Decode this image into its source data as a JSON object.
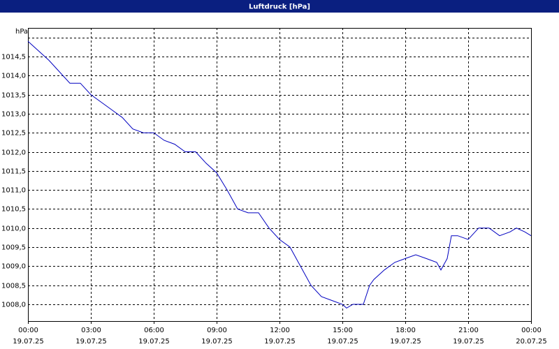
{
  "chart_data": {
    "type": "line",
    "title": "Luftdruck [hPa]",
    "y_unit_label": "hPa",
    "x": [
      0,
      1,
      2,
      2.5,
      3,
      3.5,
      4,
      4.5,
      5,
      5.5,
      6,
      6.5,
      7,
      7.5,
      8,
      8.5,
      9,
      9.5,
      10,
      10.5,
      11,
      11.5,
      12,
      12.5,
      13,
      13.5,
      14,
      14.5,
      15,
      15.2,
      15.5,
      16,
      16.3,
      16.5,
      17,
      17.5,
      18,
      18.5,
      19,
      19.5,
      19.7,
      20,
      20.2,
      20.5,
      21,
      21.5,
      22,
      22.5,
      23,
      23.3,
      23.7,
      24
    ],
    "series": [
      {
        "name": "Luftdruck",
        "color": "#0000c0",
        "values": [
          1014.9,
          1014.4,
          1013.8,
          1013.8,
          1013.5,
          1013.3,
          1013.1,
          1012.9,
          1012.6,
          1012.5,
          1012.5,
          1012.3,
          1012.2,
          1012.0,
          1012.0,
          1011.7,
          1011.45,
          1011.0,
          1010.5,
          1010.4,
          1010.4,
          1010.0,
          1009.7,
          1009.5,
          1009.0,
          1008.5,
          1008.2,
          1008.1,
          1008.0,
          1007.9,
          1008.0,
          1008.0,
          1008.5,
          1008.65,
          1008.9,
          1009.1,
          1009.2,
          1009.3,
          1009.2,
          1009.1,
          1008.9,
          1009.2,
          1009.8,
          1009.8,
          1009.7,
          1010.0,
          1010.0,
          1009.8,
          1009.9,
          1010.0,
          1009.9,
          1009.8
        ]
      }
    ],
    "xlim": [
      0,
      24
    ],
    "xticks": [
      {
        "value": 0,
        "label": "00:00"
      },
      {
        "value": 3,
        "label": "03:00"
      },
      {
        "value": 6,
        "label": "06:00"
      },
      {
        "value": 9,
        "label": "09:00"
      },
      {
        "value": 12,
        "label": "12:00"
      },
      {
        "value": 15,
        "label": "15:00"
      },
      {
        "value": 18,
        "label": "18:00"
      },
      {
        "value": 21,
        "label": "21:00"
      },
      {
        "value": 24,
        "label": "00:00"
      }
    ],
    "xtick_dates": [
      "19.07.25",
      "19.07.25",
      "19.07.25",
      "19.07.25",
      "19.07.25",
      "19.07.25",
      "19.07.25",
      "19.07.25",
      "20.07.25"
    ],
    "ylim": [
      1007.56,
      1015.25
    ],
    "yticks": [
      {
        "value": 1008,
        "label": "1008,0"
      },
      {
        "value": 1008.5,
        "label": "1008,5"
      },
      {
        "value": 1009,
        "label": "1009,0"
      },
      {
        "value": 1009.5,
        "label": "1009,5"
      },
      {
        "value": 1010,
        "label": "1010,0"
      },
      {
        "value": 1010.5,
        "label": "1010,5"
      },
      {
        "value": 1011,
        "label": "1011,0"
      },
      {
        "value": 1011.5,
        "label": "1011,5"
      },
      {
        "value": 1012,
        "label": "1012,0"
      },
      {
        "value": 1012.5,
        "label": "1012,5"
      },
      {
        "value": 1013,
        "label": "1013,0"
      },
      {
        "value": 1013.5,
        "label": "1013,5"
      },
      {
        "value": 1014,
        "label": "1014,0"
      },
      {
        "value": 1014.5,
        "label": "1014,5"
      },
      {
        "value": 1015,
        "label": null
      }
    ],
    "grid": true
  }
}
